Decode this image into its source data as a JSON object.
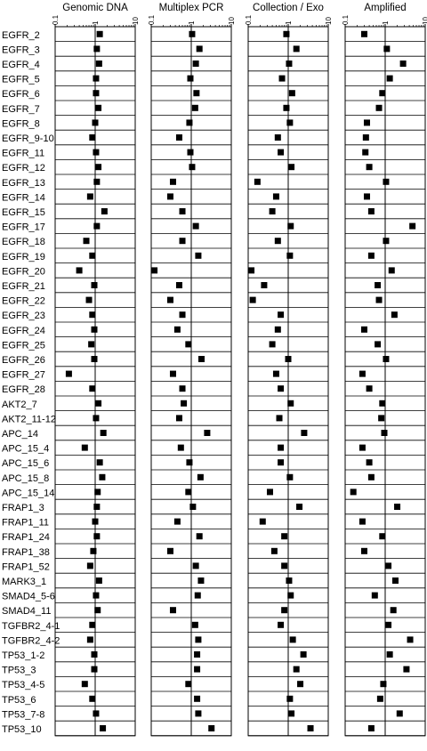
{
  "chart_data": {
    "type": "scatter",
    "x_scale": "log",
    "xlim": [
      0.1,
      10
    ],
    "x_ticks": [
      "0.1",
      "1",
      "10"
    ],
    "reference_line_x": 1,
    "marker": "filled-square",
    "categories": [
      "EGFR_2",
      "EGFR_3",
      "EGFR_4",
      "EGFR_5",
      "EGFR_6",
      "EGFR_7",
      "EGFR_8",
      "EGFR_9-10",
      "EGFR_11",
      "EGFR_12",
      "EGFR_13",
      "EGFR_14",
      "EGFR_15",
      "EGFR_17",
      "EGFR_18",
      "EGFR_19",
      "EGFR_20",
      "EGFR_21",
      "EGFR_22",
      "EGFR_23",
      "EGFR_24",
      "EGFR_25",
      "EGFR_26",
      "EGFR_27",
      "EGFR_28",
      "AKT2_7",
      "AKT2_11-12",
      "APC_14",
      "APC_15_4",
      "APC_15_6",
      "APC_15_8",
      "APC_15_14",
      "FRAP1_3",
      "FRAP1_11",
      "FRAP1_24",
      "FRAP1_38",
      "FRAP1_52",
      "MARK3_1",
      "SMAD4_5-6",
      "SMAD4_11",
      "TGFBR2_4-1",
      "TGFBR2_4-2",
      "TP53_1-2",
      "TP53_3",
      "TP53_4-5",
      "TP53_6",
      "TP53_7-8",
      "TP53_10"
    ],
    "panels": [
      {
        "title": "Genomic DNA",
        "values": [
          1.3,
          1.1,
          1.25,
          1.05,
          1.05,
          1.2,
          1.0,
          0.85,
          1.05,
          1.2,
          1.1,
          0.75,
          1.7,
          1.1,
          0.6,
          0.85,
          0.4,
          0.95,
          0.7,
          0.85,
          0.95,
          0.8,
          0.95,
          0.22,
          0.85,
          1.2,
          1.05,
          1.6,
          0.55,
          1.3,
          1.5,
          1.15,
          1.1,
          1.0,
          1.1,
          0.9,
          0.75,
          1.25,
          1.05,
          1.15,
          0.85,
          0.75,
          0.95,
          0.95,
          0.55,
          0.85,
          1.05,
          1.55
        ]
      },
      {
        "title": "Multiplex PCR",
        "values": [
          1.05,
          1.6,
          1.3,
          0.95,
          1.35,
          1.25,
          0.9,
          0.5,
          0.95,
          1.05,
          0.35,
          0.3,
          0.6,
          1.3,
          0.6,
          1.5,
          0.12,
          0.5,
          0.3,
          0.6,
          0.45,
          0.85,
          1.8,
          0.35,
          0.6,
          0.65,
          0.5,
          2.5,
          0.55,
          0.9,
          1.7,
          0.85,
          1.1,
          0.45,
          1.6,
          0.3,
          1.3,
          1.75,
          1.45,
          0.35,
          1.25,
          1.5,
          1.4,
          1.4,
          0.85,
          1.4,
          1.5,
          3.2
        ]
      },
      {
        "title": "Collection / Exo",
        "values": [
          0.9,
          1.6,
          1.05,
          0.7,
          1.25,
          0.9,
          1.1,
          0.55,
          0.65,
          1.2,
          0.17,
          0.5,
          0.4,
          1.15,
          0.55,
          1.1,
          0.12,
          0.25,
          0.13,
          0.65,
          0.55,
          0.4,
          1.0,
          0.5,
          0.65,
          1.15,
          0.6,
          2.5,
          0.65,
          0.65,
          1.1,
          0.35,
          1.9,
          0.23,
          0.8,
          0.45,
          0.8,
          1.05,
          1.15,
          0.8,
          0.65,
          1.3,
          2.4,
          1.6,
          2.0,
          1.1,
          1.2,
          3.6
        ]
      },
      {
        "title": "Amplified",
        "values": [
          0.3,
          1.1,
          2.8,
          1.3,
          0.85,
          0.7,
          0.35,
          0.33,
          0.32,
          0.4,
          1.05,
          0.35,
          0.45,
          4.8,
          1.05,
          0.45,
          1.45,
          0.65,
          0.7,
          1.7,
          0.3,
          0.65,
          1.05,
          0.27,
          0.4,
          0.85,
          0.8,
          0.95,
          0.27,
          0.4,
          0.45,
          0.16,
          2.0,
          0.27,
          0.85,
          0.3,
          1.2,
          1.8,
          0.55,
          1.6,
          1.2,
          4.2,
          1.3,
          3.4,
          0.9,
          0.75,
          2.3,
          0.45
        ]
      }
    ]
  }
}
